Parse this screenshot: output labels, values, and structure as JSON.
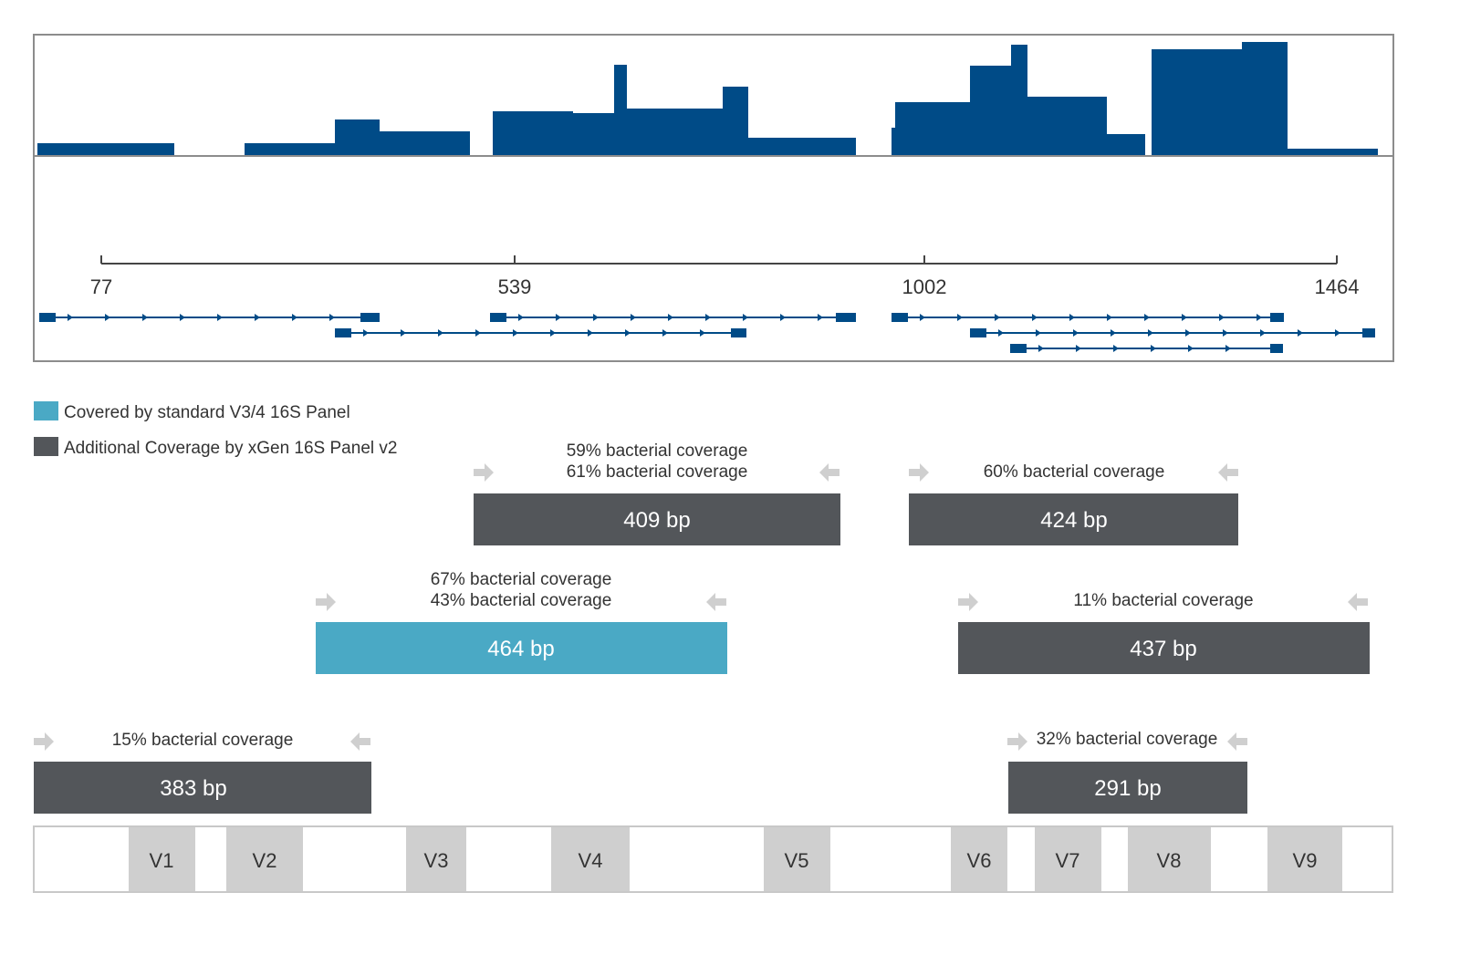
{
  "colors": {
    "coverage": "#004b87",
    "frame": "#8c8c8c",
    "standard_panel": "#4aa9c5",
    "xgen_panel": "#53565a",
    "region_box": "#cfcfcf",
    "primer_arrow": "#cfcfcf",
    "text": "#333333"
  },
  "coverage_track": {
    "description_hidden": false,
    "axis_ticks": [
      "77",
      "539",
      "1002",
      "1464"
    ]
  },
  "legend": {
    "items": [
      {
        "label": "Covered by standard V3/4 16S Panel",
        "color_key": "standard_panel"
      },
      {
        "label": "Additional Coverage by xGen 16S Panel v2",
        "color_key": "xgen_panel"
      }
    ]
  },
  "amplicons": [
    {
      "id": "a1",
      "size": "409 bp",
      "coverage_lines": [
        "59% bacterial coverage",
        "61% bacterial coverage"
      ],
      "panel": "xgen_panel"
    },
    {
      "id": "a2",
      "size": "424 bp",
      "coverage_lines": [
        "60% bacterial coverage"
      ],
      "panel": "xgen_panel"
    },
    {
      "id": "a3",
      "size": "464 bp",
      "coverage_lines": [
        "67% bacterial coverage",
        "43% bacterial coverage"
      ],
      "panel": "standard_panel"
    },
    {
      "id": "a4",
      "size": "437 bp",
      "coverage_lines": [
        "11% bacterial coverage"
      ],
      "panel": "xgen_panel"
    },
    {
      "id": "a5",
      "size": "383 bp",
      "coverage_lines": [
        "15% bacterial coverage"
      ],
      "panel": "xgen_panel"
    },
    {
      "id": "a6",
      "size": "291 bp",
      "coverage_lines": [
        "32% bacterial coverage"
      ],
      "panel": "xgen_panel"
    }
  ],
  "regions": [
    "V1",
    "V2",
    "V3",
    "V4",
    "V5",
    "V6",
    "V7",
    "V8",
    "V9"
  ]
}
